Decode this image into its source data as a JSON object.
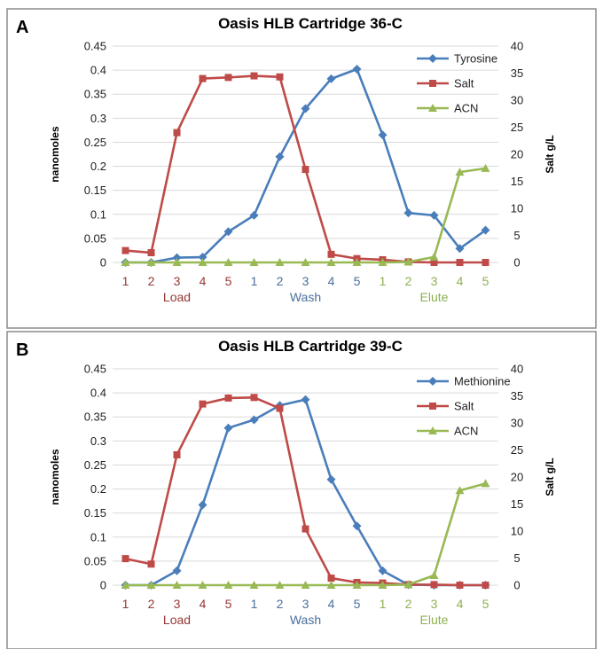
{
  "chart_data": [
    {
      "type": "line",
      "panel_label": "A",
      "title": "Oasis HLB Cartridge 36-C",
      "ylabel": "nanomoles",
      "y2label": "Salt g/L",
      "ylim": [
        0,
        0.45
      ],
      "y2lim": [
        0,
        40
      ],
      "yticks": [
        "0",
        "0.05",
        "0.1",
        "0.15",
        "0.2",
        "0.25",
        "0.3",
        "0.35",
        "0.4",
        "0.45"
      ],
      "y2ticks": [
        "0",
        "5",
        "10",
        "15",
        "20",
        "25",
        "30",
        "35",
        "40"
      ],
      "categories": [
        "1",
        "2",
        "3",
        "4",
        "5",
        "1",
        "2",
        "3",
        "4",
        "5",
        "1",
        "2",
        "3",
        "4",
        "5"
      ],
      "groups": [
        {
          "label": "Load",
          "color": "#953735",
          "count": 5
        },
        {
          "label": "Wash",
          "color": "#4a6f9c",
          "count": 5
        },
        {
          "label": "Elute",
          "color": "#8db050",
          "count": 5
        }
      ],
      "legend_position": "top-right",
      "series": [
        {
          "name": "Tyrosine",
          "axis": "left",
          "color": "#4a7ebb",
          "marker": "diamond",
          "values": [
            0,
            0,
            0.01,
            0.011,
            0.064,
            0.098,
            0.22,
            0.32,
            0.382,
            0.402,
            0.265,
            0.103,
            0.098,
            0.029,
            0.067
          ]
        },
        {
          "name": "Salt",
          "axis": "right",
          "color": "#be4b48",
          "marker": "square",
          "values": [
            2.2,
            1.8,
            24,
            34,
            34.2,
            34.5,
            34.3,
            17.2,
            1.5,
            0.7,
            0.5,
            0.1,
            0,
            0,
            0
          ]
        },
        {
          "name": "ACN",
          "axis": "right",
          "color": "#98b954",
          "marker": "triangle",
          "values": [
            0,
            0,
            0,
            0,
            0,
            0,
            0,
            0,
            0,
            0,
            0,
            0.1,
            1,
            16.7,
            17.4
          ]
        }
      ]
    },
    {
      "type": "line",
      "panel_label": "B",
      "title": "Oasis HLB Cartridge 39-C",
      "ylabel": "nanomoles",
      "y2label": "Salt g/L",
      "ylim": [
        0,
        0.45
      ],
      "y2lim": [
        0,
        40
      ],
      "yticks": [
        "0",
        "0.05",
        "0.1",
        "0.15",
        "0.2",
        "0.25",
        "0.3",
        "0.35",
        "0.4",
        "0.45"
      ],
      "y2ticks": [
        "0",
        "5",
        "10",
        "15",
        "20",
        "25",
        "30",
        "35",
        "40"
      ],
      "categories": [
        "1",
        "2",
        "3",
        "4",
        "5",
        "1",
        "2",
        "3",
        "4",
        "5",
        "1",
        "2",
        "3",
        "4",
        "5"
      ],
      "groups": [
        {
          "label": "Load",
          "color": "#953735",
          "count": 5
        },
        {
          "label": "Wash",
          "color": "#4a6f9c",
          "count": 5
        },
        {
          "label": "Elute",
          "color": "#8db050",
          "count": 5
        }
      ],
      "legend_position": "top-right",
      "series": [
        {
          "name": "Methionine",
          "axis": "left",
          "color": "#4a7ebb",
          "marker": "diamond",
          "values": [
            0,
            0,
            0.03,
            0.167,
            0.327,
            0.344,
            0.374,
            0.386,
            0.22,
            0.123,
            0.03,
            0.001,
            0,
            0,
            0
          ]
        },
        {
          "name": "Salt",
          "axis": "right",
          "color": "#be4b48",
          "marker": "square",
          "values": [
            4.9,
            3.9,
            24.1,
            33.5,
            34.6,
            34.7,
            32.7,
            10.4,
            1.3,
            0.5,
            0.4,
            0.1,
            0.1,
            0,
            0
          ]
        },
        {
          "name": "ACN",
          "axis": "right",
          "color": "#98b954",
          "marker": "triangle",
          "values": [
            0,
            0,
            0,
            0,
            0,
            0,
            0,
            0,
            0,
            0,
            0,
            0.1,
            1.8,
            17.5,
            18.8
          ]
        }
      ]
    }
  ]
}
